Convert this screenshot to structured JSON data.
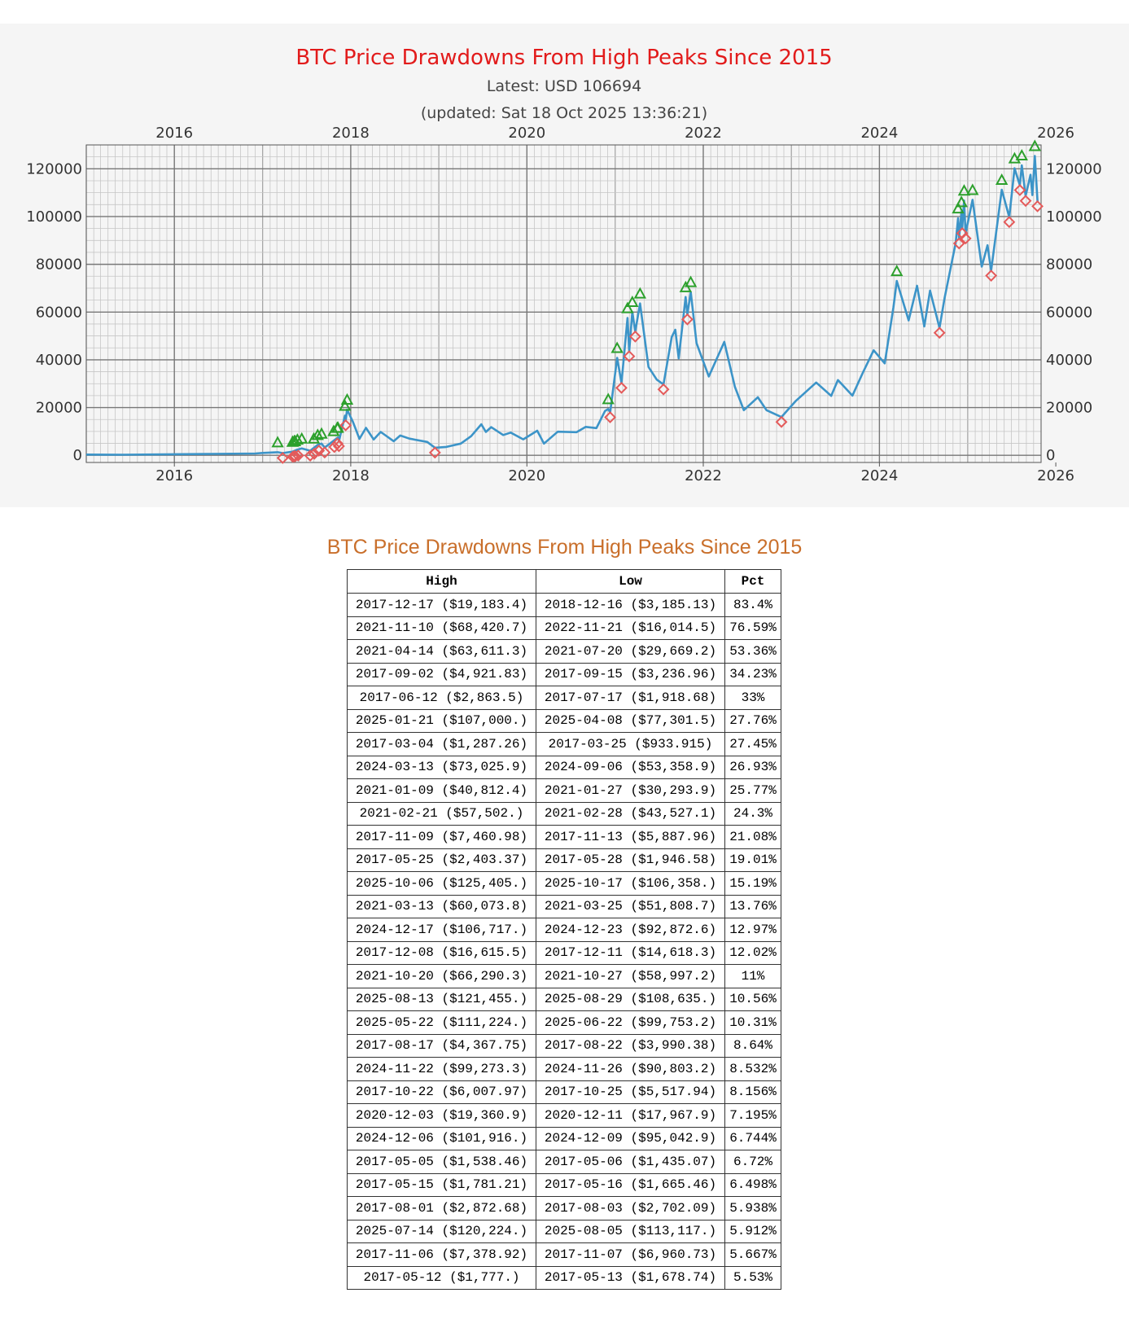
{
  "chart_data": {
    "type": "line",
    "title": "BTC Price Drawdowns From High Peaks Since 2015",
    "subtitle_latest": "Latest: USD 106694",
    "subtitle_updated": "(updated: Sat 18 Oct 2025 13:36:21)",
    "x_range": [
      "2015-01-01",
      "2025-11-01"
    ],
    "ylim": [
      -3000,
      130000
    ],
    "x_ticks": [
      "2016",
      "2018",
      "2020",
      "2022",
      "2024",
      "2026"
    ],
    "y_ticks": [
      "0",
      "20000",
      "40000",
      "60000",
      "80000",
      "100000",
      "120000"
    ],
    "grid": true,
    "line_color": "#3c94c8",
    "high_marker_color": "#2ca02c",
    "low_marker_color": "#e45a5a",
    "price_series": [
      [
        "2015-01-01",
        320
      ],
      [
        "2015-06-01",
        230
      ],
      [
        "2016-01-01",
        430
      ],
      [
        "2016-06-01",
        580
      ],
      [
        "2016-12-01",
        750
      ],
      [
        "2017-01-01",
        1000
      ],
      [
        "2017-03-04",
        1287
      ],
      [
        "2017-03-25",
        934
      ],
      [
        "2017-05-05",
        1538
      ],
      [
        "2017-05-25",
        2403
      ],
      [
        "2017-06-12",
        2864
      ],
      [
        "2017-07-17",
        1919
      ],
      [
        "2017-08-17",
        4368
      ],
      [
        "2017-09-02",
        4922
      ],
      [
        "2017-09-15",
        3237
      ],
      [
        "2017-11-09",
        7461
      ],
      [
        "2017-11-13",
        5888
      ],
      [
        "2017-12-08",
        16616
      ],
      [
        "2017-12-11",
        14618
      ],
      [
        "2017-12-17",
        19183
      ],
      [
        "2018-01-10",
        14000
      ],
      [
        "2018-02-06",
        6900
      ],
      [
        "2018-03-05",
        11500
      ],
      [
        "2018-04-06",
        6600
      ],
      [
        "2018-05-05",
        9800
      ],
      [
        "2018-06-28",
        5900
      ],
      [
        "2018-07-25",
        8300
      ],
      [
        "2018-09-01",
        7000
      ],
      [
        "2018-11-14",
        5600
      ],
      [
        "2018-12-16",
        3185
      ],
      [
        "2019-02-01",
        3500
      ],
      [
        "2019-04-02",
        4900
      ],
      [
        "2019-05-15",
        8000
      ],
      [
        "2019-06-26",
        13000
      ],
      [
        "2019-07-15",
        9800
      ],
      [
        "2019-08-06",
        11800
      ],
      [
        "2019-09-25",
        8500
      ],
      [
        "2019-10-26",
        9500
      ],
      [
        "2019-12-17",
        6700
      ],
      [
        "2020-02-13",
        10300
      ],
      [
        "2020-03-12",
        4900
      ],
      [
        "2020-05-08",
        9900
      ],
      [
        "2020-07-25",
        9700
      ],
      [
        "2020-09-01",
        11900
      ],
      [
        "2020-10-15",
        11400
      ],
      [
        "2020-11-20",
        18600
      ],
      [
        "2020-12-03",
        19361
      ],
      [
        "2020-12-11",
        17968
      ],
      [
        "2021-01-09",
        40812
      ],
      [
        "2021-01-27",
        30294
      ],
      [
        "2021-02-21",
        57502
      ],
      [
        "2021-02-28",
        43527
      ],
      [
        "2021-03-13",
        60074
      ],
      [
        "2021-03-25",
        51809
      ],
      [
        "2021-04-14",
        63611
      ],
      [
        "2021-05-19",
        37000
      ],
      [
        "2021-06-22",
        31700
      ],
      [
        "2021-07-20",
        29669
      ],
      [
        "2021-08-23",
        49500
      ],
      [
        "2021-09-07",
        52600
      ],
      [
        "2021-09-21",
        40600
      ],
      [
        "2021-10-20",
        66290
      ],
      [
        "2021-10-27",
        58997
      ],
      [
        "2021-11-10",
        68421
      ],
      [
        "2021-12-04",
        47000
      ],
      [
        "2022-01-24",
        33000
      ],
      [
        "2022-03-29",
        47500
      ],
      [
        "2022-05-12",
        28700
      ],
      [
        "2022-06-18",
        18900
      ],
      [
        "2022-08-15",
        24300
      ],
      [
        "2022-09-20",
        18900
      ],
      [
        "2022-11-21",
        16015
      ],
      [
        "2023-01-20",
        22800
      ],
      [
        "2023-04-14",
        30500
      ],
      [
        "2023-06-15",
        24900
      ],
      [
        "2023-07-13",
        31500
      ],
      [
        "2023-09-11",
        25000
      ],
      [
        "2023-10-24",
        34500
      ],
      [
        "2023-12-08",
        44000
      ],
      [
        "2024-01-23",
        38500
      ],
      [
        "2024-02-28",
        62000
      ],
      [
        "2024-03-13",
        73026
      ],
      [
        "2024-05-01",
        56500
      ],
      [
        "2024-06-05",
        71000
      ],
      [
        "2024-07-05",
        54000
      ],
      [
        "2024-07-29",
        69000
      ],
      [
        "2024-09-06",
        53359
      ],
      [
        "2024-09-27",
        65800
      ],
      [
        "2024-11-12",
        89000
      ],
      [
        "2024-11-22",
        99273
      ],
      [
        "2024-11-26",
        90803
      ],
      [
        "2024-12-06",
        101916
      ],
      [
        "2024-12-09",
        95043
      ],
      [
        "2024-12-17",
        106717
      ],
      [
        "2024-12-23",
        92873
      ],
      [
        "2025-01-21",
        107000
      ],
      [
        "2025-02-28",
        79000
      ],
      [
        "2025-03-24",
        88000
      ],
      [
        "2025-04-08",
        77302
      ],
      [
        "2025-05-22",
        111224
      ],
      [
        "2025-06-22",
        99753
      ],
      [
        "2025-07-14",
        120224
      ],
      [
        "2025-08-05",
        113117
      ],
      [
        "2025-08-13",
        121455
      ],
      [
        "2025-08-29",
        108635
      ],
      [
        "2025-09-18",
        117500
      ],
      [
        "2025-09-26",
        109000
      ],
      [
        "2025-10-06",
        125405
      ],
      [
        "2025-10-17",
        106358
      ],
      [
        "2025-10-18",
        106694
      ]
    ],
    "table_title": "BTC Price Drawdowns From High Peaks Since 2015",
    "table_headers": [
      "High",
      "Low",
      "Pct"
    ],
    "drawdowns": [
      {
        "high": "2017-12-17 ($19,183.4)",
        "low": "2018-12-16 ($3,185.13)",
        "pct": "83.4%",
        "high_date": "2017-12-17",
        "high_price": 19183.4,
        "low_date": "2018-12-16",
        "low_price": 3185.13
      },
      {
        "high": "2021-11-10 ($68,420.7)",
        "low": "2022-11-21 ($16,014.5)",
        "pct": "76.59%",
        "high_date": "2021-11-10",
        "high_price": 68420.7,
        "low_date": "2022-11-21",
        "low_price": 16014.5
      },
      {
        "high": "2021-04-14 ($63,611.3)",
        "low": "2021-07-20 ($29,669.2)",
        "pct": "53.36%",
        "high_date": "2021-04-14",
        "high_price": 63611.3,
        "low_date": "2021-07-20",
        "low_price": 29669.2
      },
      {
        "high": "2017-09-02 ($4,921.83)",
        "low": "2017-09-15 ($3,236.96)",
        "pct": "34.23%",
        "high_date": "2017-09-02",
        "high_price": 4921.83,
        "low_date": "2017-09-15",
        "low_price": 3236.96
      },
      {
        "high": "2017-06-12 ($2,863.5)",
        "low": "2017-07-17 ($1,918.68)",
        "pct": "33%",
        "high_date": "2017-06-12",
        "high_price": 2863.5,
        "low_date": "2017-07-17",
        "low_price": 1918.68
      },
      {
        "high": "2025-01-21 ($107,000.)",
        "low": "2025-04-08 ($77,301.5)",
        "pct": "27.76%",
        "high_date": "2025-01-21",
        "high_price": 107000,
        "low_date": "2025-04-08",
        "low_price": 77301.5
      },
      {
        "high": "2017-03-04 ($1,287.26)",
        "low": "2017-03-25 ($933.915)",
        "pct": "27.45%",
        "high_date": "2017-03-04",
        "high_price": 1287.26,
        "low_date": "2017-03-25",
        "low_price": 933.915
      },
      {
        "high": "2024-03-13 ($73,025.9)",
        "low": "2024-09-06 ($53,358.9)",
        "pct": "26.93%",
        "high_date": "2024-03-13",
        "high_price": 73025.9,
        "low_date": "2024-09-06",
        "low_price": 53358.9
      },
      {
        "high": "2021-01-09 ($40,812.4)",
        "low": "2021-01-27 ($30,293.9)",
        "pct": "25.77%",
        "high_date": "2021-01-09",
        "high_price": 40812.4,
        "low_date": "2021-01-27",
        "low_price": 30293.9
      },
      {
        "high": "2021-02-21 ($57,502.)",
        "low": "2021-02-28 ($43,527.1)",
        "pct": "24.3%",
        "high_date": "2021-02-21",
        "high_price": 57502,
        "low_date": "2021-02-28",
        "low_price": 43527.1
      },
      {
        "high": "2017-11-09 ($7,460.98)",
        "low": "2017-11-13 ($5,887.96)",
        "pct": "21.08%",
        "high_date": "2017-11-09",
        "high_price": 7460.98,
        "low_date": "2017-11-13",
        "low_price": 5887.96
      },
      {
        "high": "2017-05-25 ($2,403.37)",
        "low": "2017-05-28 ($1,946.58)",
        "pct": "19.01%",
        "high_date": "2017-05-25",
        "high_price": 2403.37,
        "low_date": "2017-05-28",
        "low_price": 1946.58
      },
      {
        "high": "2025-10-06 ($125,405.)",
        "low": "2025-10-17 ($106,358.)",
        "pct": "15.19%",
        "high_date": "2025-10-06",
        "high_price": 125405,
        "low_date": "2025-10-17",
        "low_price": 106358
      },
      {
        "high": "2021-03-13 ($60,073.8)",
        "low": "2021-03-25 ($51,808.7)",
        "pct": "13.76%",
        "high_date": "2021-03-13",
        "high_price": 60073.8,
        "low_date": "2021-03-25",
        "low_price": 51808.7
      },
      {
        "high": "2024-12-17 ($106,717.)",
        "low": "2024-12-23 ($92,872.6)",
        "pct": "12.97%",
        "high_date": "2024-12-17",
        "high_price": 106717,
        "low_date": "2024-12-23",
        "low_price": 92872.6
      },
      {
        "high": "2017-12-08 ($16,615.5)",
        "low": "2017-12-11 ($14,618.3)",
        "pct": "12.02%",
        "high_date": "2017-12-08",
        "high_price": 16615.5,
        "low_date": "2017-12-11",
        "low_price": 14618.3
      },
      {
        "high": "2021-10-20 ($66,290.3)",
        "low": "2021-10-27 ($58,997.2)",
        "pct": "11%",
        "high_date": "2021-10-20",
        "high_price": 66290.3,
        "low_date": "2021-10-27",
        "low_price": 58997.2
      },
      {
        "high": "2025-08-13 ($121,455.)",
        "low": "2025-08-29 ($108,635.)",
        "pct": "10.56%",
        "high_date": "2025-08-13",
        "high_price": 121455,
        "low_date": "2025-08-29",
        "low_price": 108635
      },
      {
        "high": "2025-05-22 ($111,224.)",
        "low": "2025-06-22 ($99,753.2)",
        "pct": "10.31%",
        "high_date": "2025-05-22",
        "high_price": 111224,
        "low_date": "2025-06-22",
        "low_price": 99753.2
      },
      {
        "high": "2017-08-17 ($4,367.75)",
        "low": "2017-08-22 ($3,990.38)",
        "pct": "8.64%",
        "high_date": "2017-08-17",
        "high_price": 4367.75,
        "low_date": "2017-08-22",
        "low_price": 3990.38
      },
      {
        "high": "2024-11-22 ($99,273.3)",
        "low": "2024-11-26 ($90,803.2)",
        "pct": "8.532%",
        "high_date": "2024-11-22",
        "high_price": 99273.3,
        "low_date": "2024-11-26",
        "low_price": 90803.2
      },
      {
        "high": "2017-10-22 ($6,007.97)",
        "low": "2017-10-25 ($5,517.94)",
        "pct": "8.156%",
        "high_date": "2017-10-22",
        "high_price": 6007.97,
        "low_date": "2017-10-25",
        "low_price": 5517.94
      },
      {
        "high": "2020-12-03 ($19,360.9)",
        "low": "2020-12-11 ($17,967.9)",
        "pct": "7.195%",
        "high_date": "2020-12-03",
        "high_price": 19360.9,
        "low_date": "2020-12-11",
        "low_price": 17967.9
      },
      {
        "high": "2024-12-06 ($101,916.)",
        "low": "2024-12-09 ($95,042.9)",
        "pct": "6.744%",
        "high_date": "2024-12-06",
        "high_price": 101916,
        "low_date": "2024-12-09",
        "low_price": 95042.9
      },
      {
        "high": "2017-05-05 ($1,538.46)",
        "low": "2017-05-06 ($1,435.07)",
        "pct": "6.72%",
        "high_date": "2017-05-05",
        "high_price": 1538.46,
        "low_date": "2017-05-06",
        "low_price": 1435.07
      },
      {
        "high": "2017-05-15 ($1,781.21)",
        "low": "2017-05-16 ($1,665.46)",
        "pct": "6.498%",
        "high_date": "2017-05-15",
        "high_price": 1781.21,
        "low_date": "2017-05-16",
        "low_price": 1665.46
      },
      {
        "high": "2017-08-01 ($2,872.68)",
        "low": "2017-08-03 ($2,702.09)",
        "pct": "5.938%",
        "high_date": "2017-08-01",
        "high_price": 2872.68,
        "low_date": "2017-08-03",
        "low_price": 2702.09
      },
      {
        "high": "2025-07-14 ($120,224.)",
        "low": "2025-08-05 ($113,117.)",
        "pct": "5.912%",
        "high_date": "2025-07-14",
        "high_price": 120224,
        "low_date": "2025-08-05",
        "low_price": 113117
      },
      {
        "high": "2017-11-06 ($7,378.92)",
        "low": "2017-11-07 ($6,960.73)",
        "pct": "5.667%",
        "high_date": "2017-11-06",
        "high_price": 7378.92,
        "low_date": "2017-11-07",
        "low_price": 6960.73
      },
      {
        "high": "2017-05-12 ($1,777.)",
        "low": "2017-05-13 ($1,678.74)",
        "pct": "5.53%",
        "high_date": "2017-05-12",
        "high_price": 1777,
        "low_date": "2017-05-13",
        "low_price": 1678.74
      }
    ]
  }
}
